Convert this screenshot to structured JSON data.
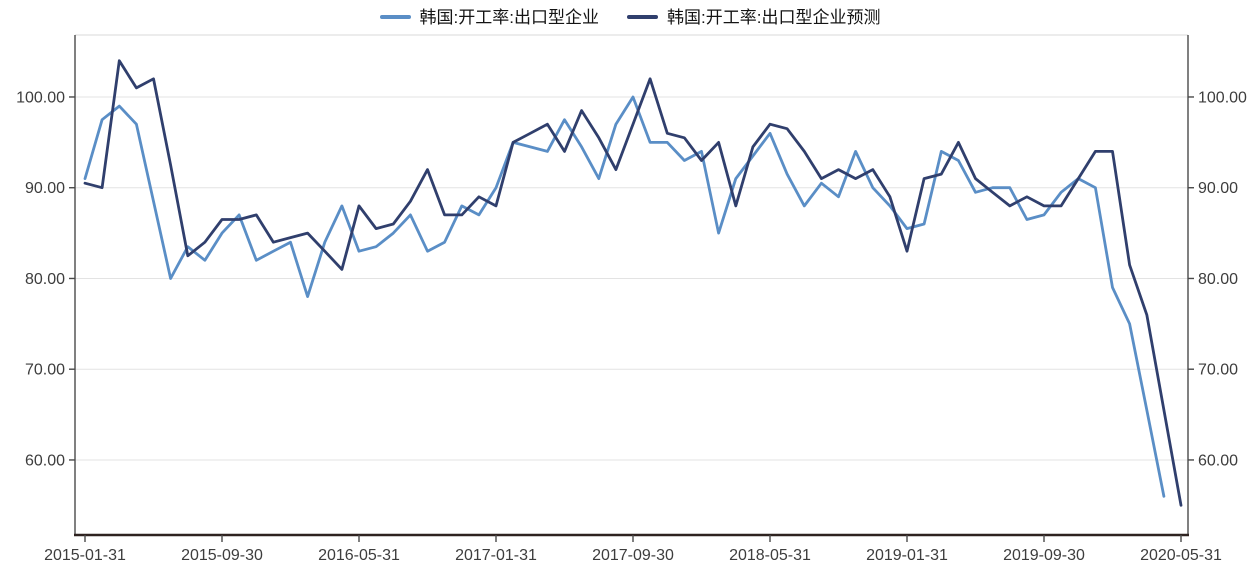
{
  "chart_data": {
    "type": "line",
    "title": "",
    "x_unit": "month",
    "grid": "horizontal",
    "legend_position": "top-center",
    "y_axis_sides": [
      "left",
      "right"
    ],
    "ylim": [
      51.73,
      106.83
    ],
    "months": [
      "2015-01",
      "2015-02",
      "2015-03",
      "2015-04",
      "2015-05",
      "2015-06",
      "2015-07",
      "2015-08",
      "2015-09",
      "2015-10",
      "2015-11",
      "2015-12",
      "2016-01",
      "2016-02",
      "2016-03",
      "2016-04",
      "2016-05",
      "2016-06",
      "2016-07",
      "2016-08",
      "2016-09",
      "2016-10",
      "2016-11",
      "2016-12",
      "2017-01",
      "2017-02",
      "2017-03",
      "2017-04",
      "2017-05",
      "2017-06",
      "2017-07",
      "2017-08",
      "2017-09",
      "2017-10",
      "2017-11",
      "2017-12",
      "2018-01",
      "2018-02",
      "2018-03",
      "2018-04",
      "2018-05",
      "2018-06",
      "2018-07",
      "2018-08",
      "2018-09",
      "2018-10",
      "2018-11",
      "2018-12",
      "2019-01",
      "2019-02",
      "2019-03",
      "2019-04",
      "2019-05",
      "2019-06",
      "2019-07",
      "2019-08",
      "2019-09",
      "2019-10",
      "2019-11",
      "2019-12",
      "2020-01",
      "2020-02",
      "2020-03",
      "2020-04",
      "2020-05"
    ],
    "series": [
      {
        "name": "韩国:开工率:出口型企业",
        "color": "#5a8ec6",
        "values": [
          91,
          97.5,
          99,
          97,
          88.5,
          80,
          83.5,
          82,
          85,
          87,
          82,
          83,
          84,
          78,
          84,
          88,
          83,
          83.5,
          85,
          87,
          83,
          84,
          88,
          87,
          90,
          95,
          94.5,
          94,
          97.5,
          94.5,
          91,
          97,
          100,
          95,
          95,
          93,
          94,
          85,
          91,
          93.5,
          96,
          91.5,
          88,
          90.5,
          89,
          94,
          90,
          88,
          85.5,
          86,
          94,
          93,
          89.5,
          90,
          90,
          86.5,
          87,
          89.5,
          91,
          90,
          79,
          75,
          65.5,
          56,
          null
        ]
      },
      {
        "name": "韩国:开工率:出口型企业预测",
        "color": "#303f6d",
        "values": [
          90.5,
          90,
          104,
          101,
          102,
          92.5,
          82.5,
          84,
          86.5,
          86.5,
          87,
          84,
          84.5,
          85,
          83,
          81,
          88,
          85.5,
          86,
          88.5,
          92,
          87,
          87,
          89,
          88,
          95,
          96,
          97,
          94,
          98.5,
          95.5,
          92,
          97,
          102,
          96,
          95.5,
          93,
          95,
          88,
          94.5,
          97,
          96.5,
          94,
          91,
          92,
          91,
          92,
          89,
          83,
          91,
          91.5,
          95,
          91,
          89.5,
          88,
          89,
          88,
          88,
          91,
          94,
          94,
          81.5,
          76,
          65.5,
          55
        ]
      }
    ],
    "y_ticks": [
      {
        "value": 100,
        "label": "100.00"
      },
      {
        "value": 90,
        "label": "90.00"
      },
      {
        "value": 80,
        "label": "80.00"
      },
      {
        "value": 70,
        "label": "70.00"
      },
      {
        "value": 60,
        "label": "60.00"
      }
    ],
    "x_ticks": [
      {
        "month_index": 0,
        "label": "2015-01-31"
      },
      {
        "month_index": 8,
        "label": "2015-09-30"
      },
      {
        "month_index": 16,
        "label": "2016-05-31"
      },
      {
        "month_index": 24,
        "label": "2017-01-31"
      },
      {
        "month_index": 32,
        "label": "2017-09-30"
      },
      {
        "month_index": 40,
        "label": "2018-05-31"
      },
      {
        "month_index": 48,
        "label": "2019-01-31"
      },
      {
        "month_index": 56,
        "label": "2019-09-30"
      },
      {
        "month_index": 64,
        "label": "2020-05-31"
      }
    ]
  }
}
